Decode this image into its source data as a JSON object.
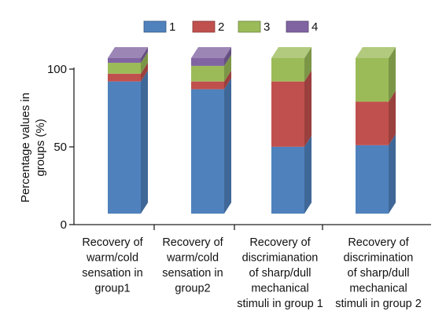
{
  "chart_data": {
    "type": "bar",
    "stacked": true,
    "ylabel_lines": [
      "Percentage values in",
      "groups (%)"
    ],
    "ylim": [
      0,
      100
    ],
    "yticks": [
      "0",
      "50",
      "100"
    ],
    "legend_placement": "top",
    "categories": [
      [
        "Recovery of",
        "warm/cold",
        "sensation in",
        "group1"
      ],
      [
        "Recovery of",
        "warm/cold",
        "sensation in",
        "group2"
      ],
      [
        "Recovery of",
        "discrimianation",
        "of sharp/dull",
        "mechanical",
        "stimuli in group 1"
      ],
      [
        "Recovery of",
        "discrimination",
        "of sharp/dull",
        "mechanical",
        "stimuli in group 2"
      ]
    ],
    "series": [
      {
        "name": "1",
        "color": "#4f81bd",
        "values": [
          85,
          80,
          43,
          44
        ]
      },
      {
        "name": "2",
        "color": "#c0504d",
        "values": [
          5,
          5,
          42,
          28
        ]
      },
      {
        "name": "3",
        "color": "#9bbb59",
        "values": [
          7,
          10,
          15,
          28
        ]
      },
      {
        "name": "4",
        "color": "#8064a2",
        "values": [
          3,
          5,
          0,
          0
        ]
      }
    ]
  }
}
